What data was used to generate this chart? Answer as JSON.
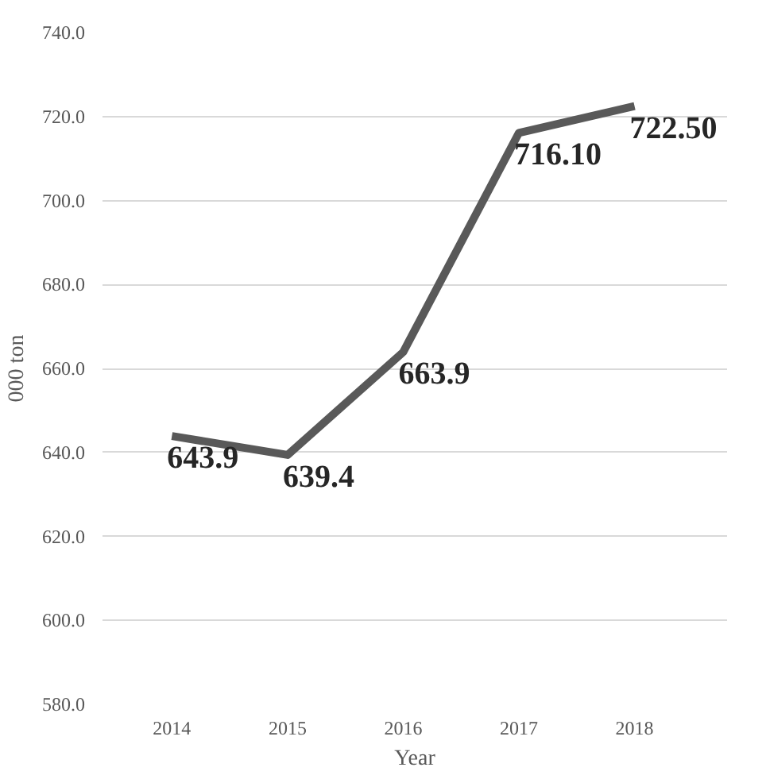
{
  "chart_data": {
    "type": "line",
    "xlabel": "Year",
    "ylabel": "000 ton",
    "categories": [
      "2014",
      "2015",
      "2016",
      "2017",
      "2018"
    ],
    "series": [
      {
        "color": "#595959",
        "values": [
          643.9,
          639.4,
          663.9,
          716.1,
          722.5
        ],
        "value_labels": [
          "643.9",
          "639.4",
          "663.9",
          "716.10",
          "722.50"
        ]
      }
    ],
    "ylim": [
      580,
      740
    ],
    "yticks": [
      {
        "value": 580,
        "label": "580.0"
      },
      {
        "value": 600,
        "label": "600.0"
      },
      {
        "value": 620,
        "label": "620.0"
      },
      {
        "value": 640,
        "label": "640.0"
      },
      {
        "value": 660,
        "label": "660.0"
      },
      {
        "value": 680,
        "label": "680.0"
      },
      {
        "value": 700,
        "label": "700.0"
      },
      {
        "value": 720,
        "label": "720.0"
      },
      {
        "value": 740,
        "label": "740.0"
      }
    ],
    "grid": "y",
    "marker": "none",
    "line_style": "solid"
  }
}
